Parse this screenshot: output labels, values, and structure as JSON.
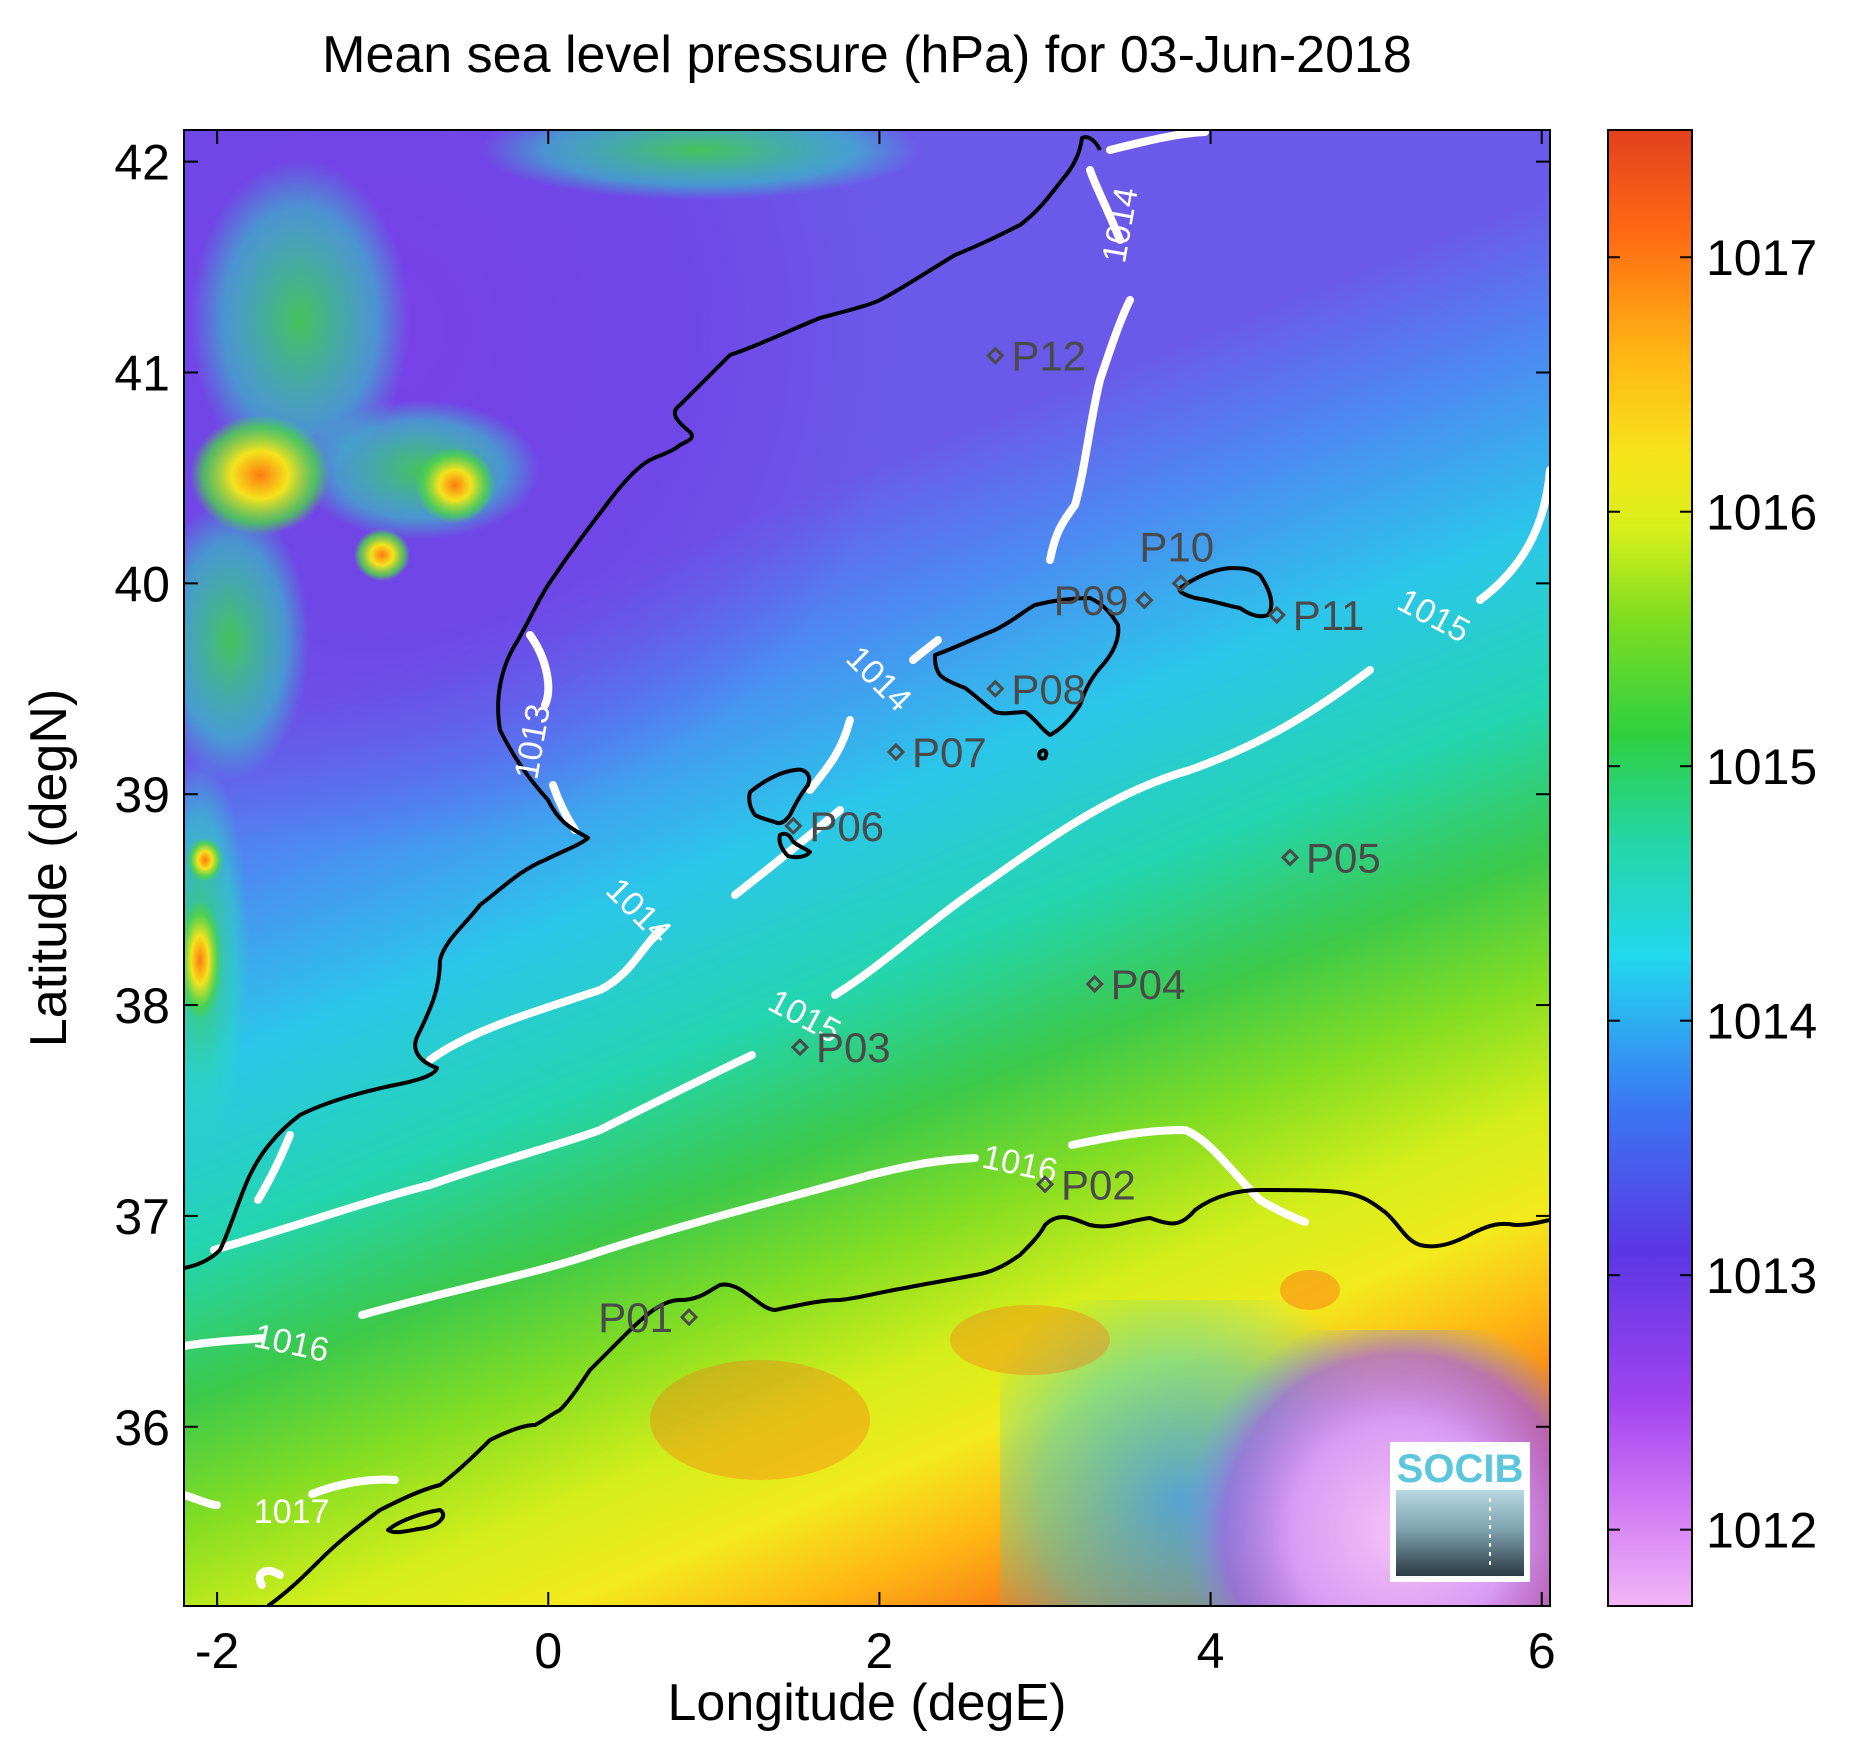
{
  "title": "Mean sea level pressure (hPa) for 03-Jun-2018",
  "axes": {
    "xlabel": "Longitude (degE)",
    "ylabel": "Latitude (degN)",
    "xlim": [
      -2.2,
      6.05
    ],
    "ylim": [
      35.15,
      42.15
    ],
    "xticks": [
      "-2",
      "0",
      "2",
      "4",
      "6"
    ],
    "yticks": [
      "36",
      "37",
      "38",
      "39",
      "40",
      "41",
      "42"
    ]
  },
  "colorbar": {
    "range": [
      1011.7,
      1017.5
    ],
    "ticks": [
      "1012",
      "1013",
      "1014",
      "1015",
      "1016",
      "1017"
    ],
    "colors": [
      "#f2b6f6",
      "#b048f0",
      "#6030e0",
      "#3a78f4",
      "#22d8ee",
      "#2bd07a",
      "#36c93d",
      "#9ae61d",
      "#e8f21a",
      "#ffc316",
      "#ff7a10",
      "#e23a1e"
    ]
  },
  "contour_labels": [
    {
      "text": "1013",
      "lon": -0.1,
      "lat": 39.25,
      "angle": 80
    },
    {
      "text": "1014",
      "lon": 0.55,
      "lat": 38.45,
      "angle": -45
    },
    {
      "text": "1014",
      "lon": 2.0,
      "lat": 39.55,
      "angle": -45
    },
    {
      "text": "1014",
      "lon": 3.45,
      "lat": 41.7,
      "angle": 80
    },
    {
      "text": "1015",
      "lon": 1.55,
      "lat": 37.95,
      "angle": -28
    },
    {
      "text": "1015",
      "lon": 5.35,
      "lat": 39.85,
      "angle": -28
    },
    {
      "text": "1016",
      "lon": -1.55,
      "lat": 36.4,
      "angle": -12
    },
    {
      "text": "1016",
      "lon": 2.85,
      "lat": 37.25,
      "angle": -12
    },
    {
      "text": "1017",
      "lon": -1.55,
      "lat": 35.6,
      "angle": 0
    }
  ],
  "stations": [
    {
      "id": "P01",
      "lon": 0.85,
      "lat": 36.52,
      "label_side": "left"
    },
    {
      "id": "P02",
      "lon": 3.0,
      "lat": 37.15,
      "label_side": "right"
    },
    {
      "id": "P03",
      "lon": 1.52,
      "lat": 37.8,
      "label_side": "right"
    },
    {
      "id": "P04",
      "lon": 3.3,
      "lat": 38.1,
      "label_side": "right"
    },
    {
      "id": "P05",
      "lon": 4.48,
      "lat": 38.7,
      "label_side": "right"
    },
    {
      "id": "P06",
      "lon": 1.48,
      "lat": 38.85,
      "label_side": "right"
    },
    {
      "id": "P07",
      "lon": 2.1,
      "lat": 39.2,
      "label_side": "right"
    },
    {
      "id": "P08",
      "lon": 2.7,
      "lat": 39.5,
      "label_side": "right"
    },
    {
      "id": "P09",
      "lon": 3.6,
      "lat": 39.92,
      "label_side": "left"
    },
    {
      "id": "P10",
      "lon": 3.82,
      "lat": 40.0,
      "label_side": "top"
    },
    {
      "id": "P11",
      "lon": 4.4,
      "lat": 39.85,
      "label_side": "right"
    },
    {
      "id": "P12",
      "lon": 2.7,
      "lat": 41.08,
      "label_side": "right"
    }
  ],
  "logo": {
    "text": "SOCIB"
  }
}
